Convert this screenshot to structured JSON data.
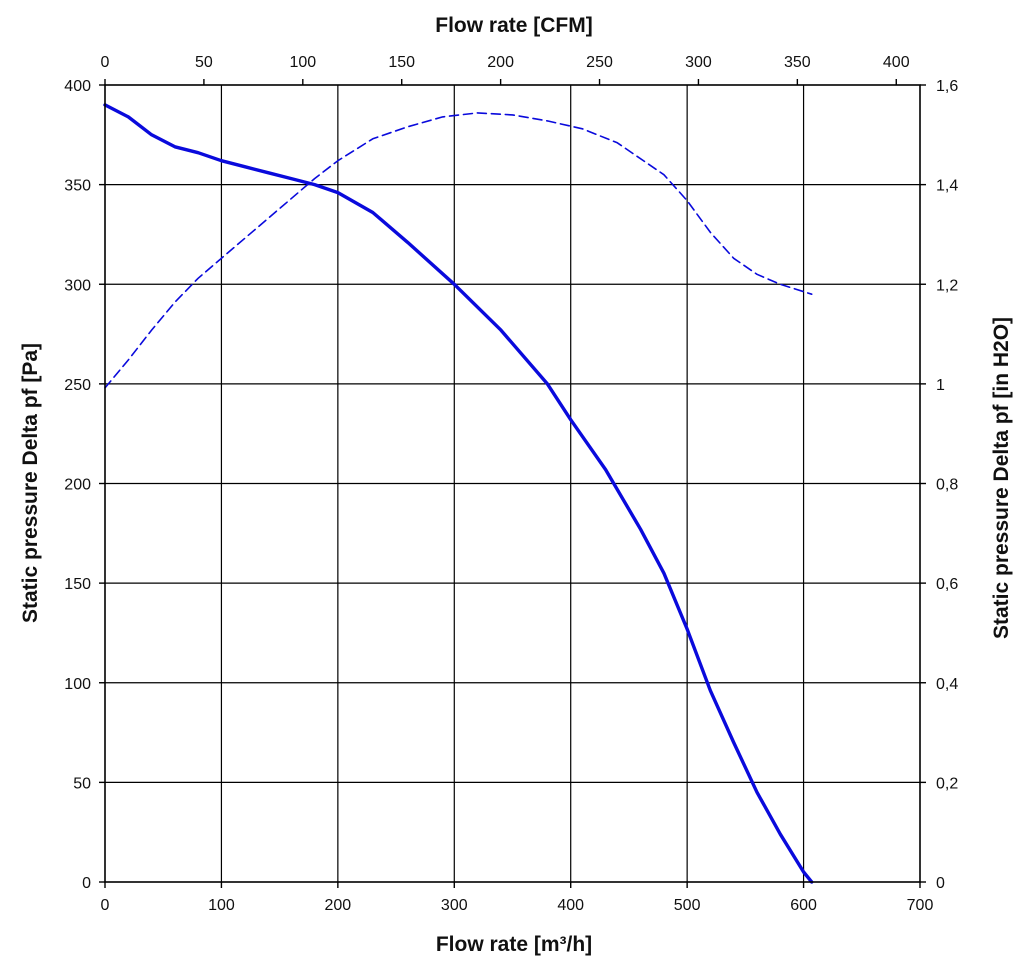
{
  "chart_data": {
    "type": "line",
    "title": "",
    "xlabel": "Flow rate [m³/h]",
    "x2label": "Flow rate [CFM]",
    "ylabel": "Static pressure Delta pf [Pa]",
    "y2label": "Static pressure Delta pf [in H2O]",
    "xlim": [
      0,
      700
    ],
    "x2lim": [
      0,
      412
    ],
    "ylim": [
      0,
      400
    ],
    "y2lim": [
      0,
      1.6
    ],
    "xticks": [
      "0",
      "100",
      "200",
      "300",
      "400",
      "500",
      "600",
      "700"
    ],
    "x2ticks": [
      "0",
      "50",
      "100",
      "150",
      "200",
      "250",
      "300",
      "350",
      "400"
    ],
    "yticks": [
      "0",
      "50",
      "100",
      "150",
      "200",
      "250",
      "300",
      "350",
      "400"
    ],
    "y2ticks": [
      "0",
      "0,2",
      "0,4",
      "0,6",
      "0,8",
      "1",
      "1,2",
      "1,4",
      "1,6"
    ],
    "grid": true,
    "colors": {
      "series": "#0a0adc",
      "grid": "#000000"
    },
    "series": [
      {
        "name": "",
        "style": "solid",
        "axis": "y",
        "x": [
          0,
          20,
          40,
          60,
          80,
          100,
          120,
          140,
          160,
          180,
          200,
          230,
          260,
          300,
          340,
          380,
          400,
          430,
          460,
          480,
          500,
          520,
          540,
          560,
          580,
          600,
          607
        ],
        "y": [
          390,
          384,
          375,
          369,
          366,
          362,
          359,
          356,
          353,
          350,
          346,
          336,
          321,
          300,
          277,
          250,
          232,
          207,
          177,
          155,
          127,
          96,
          70,
          45,
          24,
          5,
          0
        ]
      },
      {
        "name": "",
        "style": "dashed",
        "axis": "y",
        "x": [
          0,
          20,
          40,
          60,
          80,
          100,
          140,
          180,
          200,
          230,
          260,
          290,
          320,
          350,
          380,
          410,
          440,
          480,
          500,
          520,
          540,
          560,
          580,
          607
        ],
        "y": [
          248,
          262,
          277,
          291,
          303,
          313,
          333,
          353,
          362,
          373,
          379,
          384,
          386,
          385,
          382,
          378,
          371,
          355,
          342,
          326,
          313,
          305,
          300,
          295
        ]
      }
    ]
  }
}
